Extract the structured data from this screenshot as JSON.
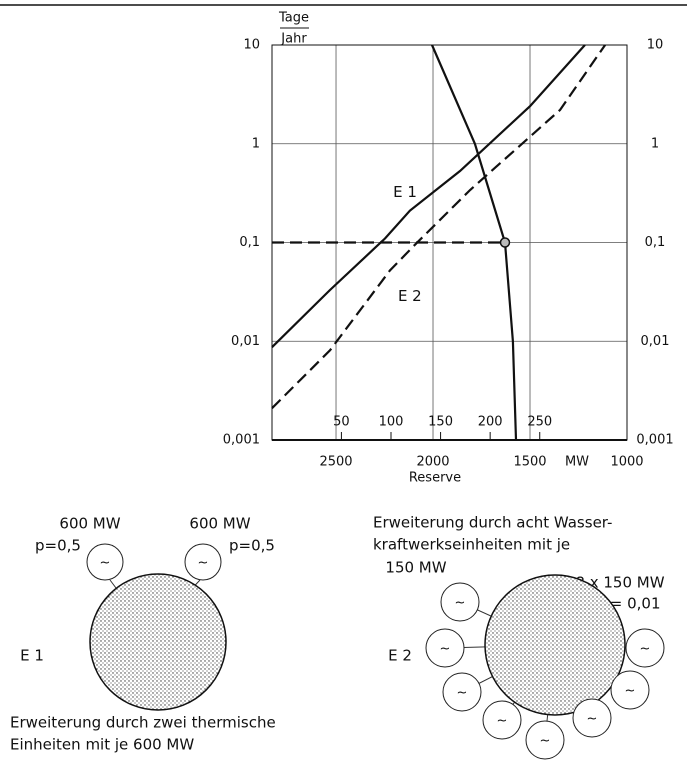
{
  "chart_data": {
    "type": "line",
    "ylabel_top": "Tage",
    "ylabel_bottom": "Jahr",
    "xlabel": "Reserve",
    "xunit": "MW",
    "log_y": true,
    "grid": true,
    "ylim": [
      0.001,
      10
    ],
    "yticks": [
      {
        "value": 0.001,
        "label": "0,001"
      },
      {
        "value": 0.01,
        "label": "0,01"
      },
      {
        "value": 0.1,
        "label": "0,1"
      },
      1,
      10
    ],
    "xlim": [
      2830,
      1000
    ],
    "xticks": [
      2500,
      2000,
      1500,
      1000
    ],
    "x2lim": [
      -20,
      338
    ],
    "x2ticks": [
      50,
      100,
      150,
      200,
      250
    ],
    "series": [
      {
        "name": "E 1",
        "color": "#111111",
        "style": "solid",
        "x": [
          2830,
          2531,
          2247,
          2119,
          1861,
          1500,
          1217
        ],
        "values": [
          0.0087,
          0.033,
          0.11,
          0.21,
          0.53,
          2.4,
          10
        ]
      },
      {
        "name": "E 2",
        "color": "#111111",
        "style": "dashed",
        "x": [
          2830,
          2531,
          2222,
          2093,
          1809,
          1345,
          1113
        ],
        "values": [
          0.0021,
          0.0081,
          0.052,
          0.095,
          0.34,
          2.2,
          10
        ]
      },
      {
        "color": "#111111",
        "style": "solid",
        "x": [
          2005,
          1784,
          1629,
          1588,
          1572
        ],
        "values": [
          10,
          1,
          0.1,
          0.01,
          0.001
        ]
      },
      {
        "color": "#111111",
        "style": "dashed",
        "marker": "end",
        "x": [
          2830,
          1629
        ],
        "values": [
          0.1,
          0.1
        ]
      }
    ]
  },
  "diagrams": {
    "symbol": "~",
    "left": {
      "label": "E 1",
      "unit_a": "600 MW",
      "p_a": "p=0,5",
      "unit_b": "600 MW",
      "p_b": "p=0,5",
      "caption_1": "Erweiterung durch zwei thermische",
      "caption_2": "Einheiten mit je 600 MW"
    },
    "right": {
      "label": "E 2",
      "heading_1": "Erweiterung durch acht Wasser-",
      "heading_2": "kraftwerkseinheiten mit je",
      "heading_3": "150 MW",
      "total": "8 x 150 MW",
      "p": "p = 0,01"
    }
  }
}
